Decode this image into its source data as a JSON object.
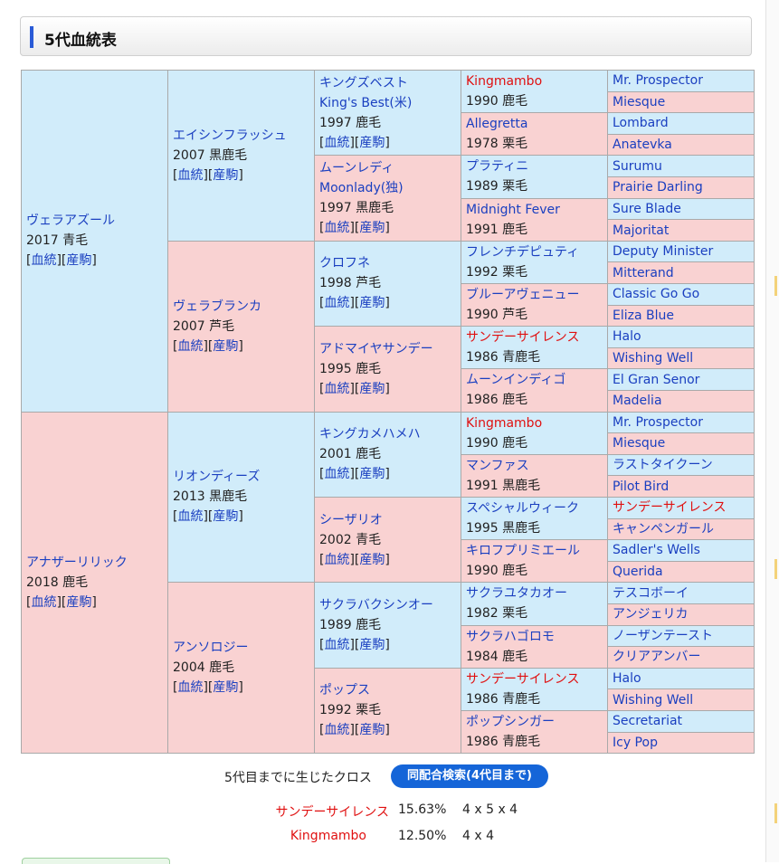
{
  "section_title": "5代血統表",
  "link_labels": {
    "ketto": "血統",
    "sanku": "産駒"
  },
  "gen1": [
    {
      "name": "ヴェラアズール",
      "info": "2017 青毛"
    },
    {
      "name": "アナザーリリック",
      "info": "2018 鹿毛"
    }
  ],
  "gen2": [
    {
      "name": "エイシンフラッシュ",
      "info": "2007 黒鹿毛"
    },
    {
      "name": "ヴェラブランカ",
      "info": "2007 芦毛"
    },
    {
      "name": "リオンディーズ",
      "info": "2013 黒鹿毛"
    },
    {
      "name": "アンソロジー",
      "info": "2004 鹿毛"
    }
  ],
  "gen3": [
    {
      "name": "キングズベスト",
      "alt": "King's Best(米)",
      "info": "1997 鹿毛"
    },
    {
      "name": "ムーンレディ",
      "alt": "Moonlady(独)",
      "info": "1997 黒鹿毛"
    },
    {
      "name": "クロフネ",
      "info": "1998 芦毛"
    },
    {
      "name": "アドマイヤサンデー",
      "info": "1995 鹿毛"
    },
    {
      "name": "キングカメハメハ",
      "info": "2001 鹿毛"
    },
    {
      "name": "シーザリオ",
      "info": "2002 青毛"
    },
    {
      "name": "サクラバクシンオー",
      "info": "1989 鹿毛"
    },
    {
      "name": "ポップス",
      "info": "1992 栗毛"
    }
  ],
  "gen4": [
    {
      "name": "Kingmambo",
      "info": "1990 鹿毛",
      "cross": true
    },
    {
      "name": "Allegretta",
      "info": "1978 栗毛"
    },
    {
      "name": "プラティニ",
      "info": "1989 栗毛"
    },
    {
      "name": "Midnight Fever",
      "info": "1991 鹿毛"
    },
    {
      "name": "フレンチデピュティ",
      "info": "1992 栗毛"
    },
    {
      "name": "ブルーアヴェニュー",
      "info": "1990 芦毛"
    },
    {
      "name": "サンデーサイレンス",
      "info": "1986 青鹿毛",
      "cross": true
    },
    {
      "name": "ムーンインディゴ",
      "info": "1986 鹿毛"
    },
    {
      "name": "Kingmambo",
      "info": "1990 鹿毛",
      "cross": true
    },
    {
      "name": "マンファス",
      "info": "1991 黒鹿毛"
    },
    {
      "name": "スペシャルウィーク",
      "info": "1995 黒鹿毛"
    },
    {
      "name": "キロフプリミエール",
      "info": "1990 鹿毛"
    },
    {
      "name": "サクラユタカオー",
      "info": "1982 栗毛"
    },
    {
      "name": "サクラハゴロモ",
      "info": "1984 鹿毛"
    },
    {
      "name": "サンデーサイレンス",
      "info": "1986 青鹿毛",
      "cross": true
    },
    {
      "name": "ポップシンガー",
      "info": "1986 青鹿毛"
    }
  ],
  "gen5": [
    {
      "name": "Mr. Prospector"
    },
    {
      "name": "Miesque"
    },
    {
      "name": "Lombard"
    },
    {
      "name": "Anatevka"
    },
    {
      "name": "Surumu"
    },
    {
      "name": "Prairie Darling"
    },
    {
      "name": "Sure Blade"
    },
    {
      "name": "Majoritat"
    },
    {
      "name": "Deputy Minister"
    },
    {
      "name": "Mitterand"
    },
    {
      "name": "Classic Go Go"
    },
    {
      "name": "Eliza Blue"
    },
    {
      "name": "Halo"
    },
    {
      "name": "Wishing Well"
    },
    {
      "name": "El Gran Senor"
    },
    {
      "name": "Madelia"
    },
    {
      "name": "Mr. Prospector"
    },
    {
      "name": "Miesque"
    },
    {
      "name": "ラストタイクーン"
    },
    {
      "name": "Pilot Bird"
    },
    {
      "name": "サンデーサイレンス",
      "cross": true
    },
    {
      "name": "キャンペンガール"
    },
    {
      "name": "Sadler's Wells"
    },
    {
      "name": "Querida"
    },
    {
      "name": "テスコボーイ"
    },
    {
      "name": "アンジェリカ"
    },
    {
      "name": "ノーザンテースト"
    },
    {
      "name": "クリアアンバー"
    },
    {
      "name": "Halo"
    },
    {
      "name": "Wishing Well"
    },
    {
      "name": "Secretariat"
    },
    {
      "name": "Icy Pop"
    }
  ],
  "crosses": {
    "label": "5代目までに生じたクロス",
    "search_button": "同配合検索(4代目まで)",
    "items": [
      {
        "name": "サンデーサイレンス",
        "pct": "15.63%",
        "gen": "4 x 5 x 4"
      },
      {
        "name": "Kingmambo",
        "pct": "12.50%",
        "gen": "4 x 4"
      }
    ]
  }
}
